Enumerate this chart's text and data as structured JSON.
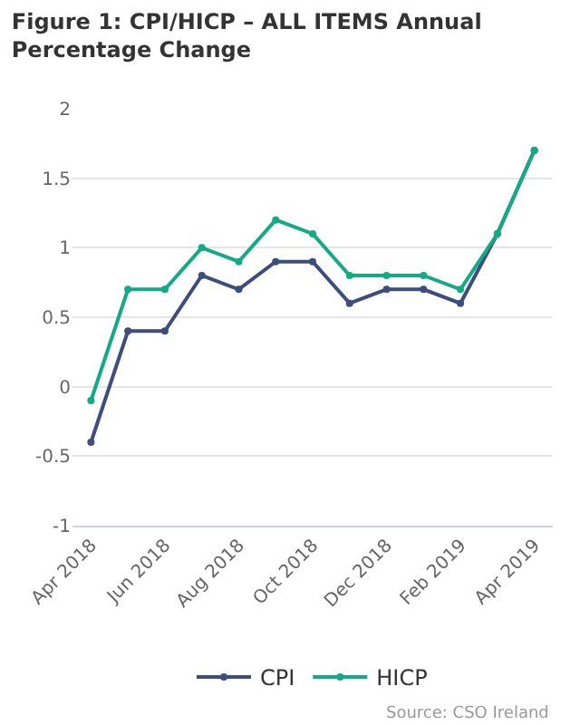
{
  "chart_data": {
    "type": "line",
    "title": "Figure 1: CPI/HICP – ALL ITEMS Annual Percentage Change",
    "categories": [
      "Apr 2018",
      null,
      "Jun 2018",
      null,
      "Aug 2018",
      null,
      "Oct 2018",
      null,
      "Dec 2018",
      null,
      "Feb 2019",
      null,
      "Apr 2019"
    ],
    "series": [
      {
        "name": "CPI",
        "color": "#3d4e7e",
        "values": [
          -0.4,
          0.4,
          0.4,
          0.8,
          0.7,
          0.9,
          0.9,
          0.6,
          0.7,
          0.7,
          0.6,
          1.1,
          1.7
        ]
      },
      {
        "name": "HICP",
        "color": "#13ab85",
        "values": [
          -0.1,
          0.7,
          0.7,
          1.0,
          0.9,
          1.2,
          1.1,
          0.8,
          0.8,
          0.8,
          0.7,
          1.1,
          1.7
        ]
      }
    ],
    "ylim": [
      -1,
      2
    ],
    "yticks": [
      -1,
      -0.5,
      0,
      0.5,
      1,
      1.5,
      2
    ],
    "grid": "y",
    "legend": "bottom",
    "marker": "circle",
    "line_style": "solid",
    "annotations": [
      "Source: CSO Ireland"
    ]
  }
}
